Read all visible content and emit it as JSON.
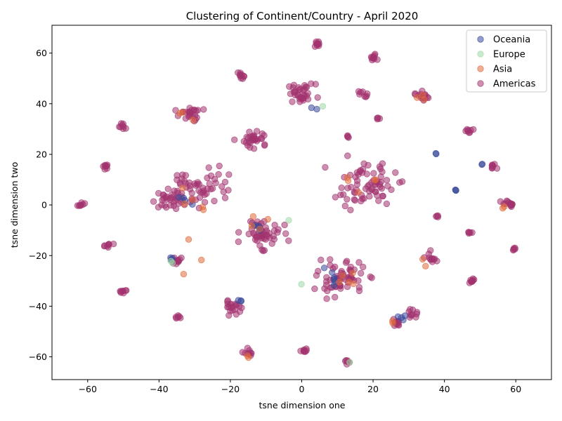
{
  "chart_data": {
    "type": "scatter",
    "title": "Clustering of Continent/Country - April 2020",
    "xlabel": "tsne dimension one",
    "ylabel": "tsne dimension two",
    "xlim": [
      -70,
      70
    ],
    "ylim": [
      -69,
      71
    ],
    "xticks": [
      "−60",
      "−40",
      "−20",
      "0",
      "20",
      "40",
      "60"
    ],
    "yticks": [
      "−60",
      "−40",
      "−20",
      "0",
      "20",
      "40",
      "60"
    ],
    "grid": false,
    "legend_position": "top-right",
    "series": [
      {
        "name": "Oceania",
        "color": "#3a4a9a"
      },
      {
        "name": "Europe",
        "color": "#9fd9a6"
      },
      {
        "name": "Asia",
        "color": "#e06b3c"
      },
      {
        "name": "Americas",
        "color": "#a3336f"
      }
    ],
    "clusters": [
      {
        "x": 4.5,
        "y": 63.5,
        "n": 10,
        "spread": 1.0,
        "series": "Americas"
      },
      {
        "x": 20.0,
        "y": 58.0,
        "n": 10,
        "spread": 0.9,
        "series": "Americas"
      },
      {
        "x": -17.0,
        "y": 51.0,
        "n": 10,
        "spread": 1.3,
        "series": "Americas"
      },
      {
        "x": 0.0,
        "y": 44.0,
        "n": 35,
        "spread": 3.2,
        "series": "Americas"
      },
      {
        "x": 17.0,
        "y": 44.0,
        "n": 8,
        "spread": 1.0,
        "series": "Americas"
      },
      {
        "x": 34.0,
        "y": 42.5,
        "n": 15,
        "spread": 2.0,
        "series": "Americas"
      },
      {
        "x": -31.5,
        "y": 36.0,
        "n": 25,
        "spread": 2.5,
        "series": "Americas"
      },
      {
        "x": -50.0,
        "y": 31.0,
        "n": 8,
        "spread": 1.0,
        "series": "Americas"
      },
      {
        "x": 47.0,
        "y": 29.5,
        "n": 8,
        "spread": 1.0,
        "series": "Americas"
      },
      {
        "x": -13.0,
        "y": 26.0,
        "n": 30,
        "spread": 3.0,
        "series": "Americas"
      },
      {
        "x": 13.0,
        "y": 27.0,
        "n": 4,
        "spread": 0.5,
        "series": "Americas"
      },
      {
        "x": 21.5,
        "y": 34.5,
        "n": 4,
        "spread": 0.5,
        "series": "Americas"
      },
      {
        "x": -29.0,
        "y": 7.0,
        "n": 60,
        "spread": 7.0,
        "series": "Americas"
      },
      {
        "x": -38.0,
        "y": 2.0,
        "n": 25,
        "spread": 3.0,
        "series": "Americas"
      },
      {
        "x": -55.0,
        "y": 15.0,
        "n": 8,
        "spread": 1.0,
        "series": "Americas"
      },
      {
        "x": -62.0,
        "y": 0.0,
        "n": 8,
        "spread": 1.0,
        "series": "Americas"
      },
      {
        "x": 18.0,
        "y": 8.0,
        "n": 70,
        "spread": 7.0,
        "series": "Americas"
      },
      {
        "x": 53.5,
        "y": 15.0,
        "n": 8,
        "spread": 0.8,
        "series": "Americas"
      },
      {
        "x": 58.0,
        "y": 0.5,
        "n": 14,
        "spread": 1.6,
        "series": "Americas"
      },
      {
        "x": -11.0,
        "y": -11.0,
        "n": 50,
        "spread": 4.5,
        "series": "Americas"
      },
      {
        "x": 38.0,
        "y": -4.5,
        "n": 4,
        "spread": 0.4,
        "series": "Americas"
      },
      {
        "x": -54.5,
        "y": -16.0,
        "n": 8,
        "spread": 1.0,
        "series": "Americas"
      },
      {
        "x": -35.5,
        "y": -22.5,
        "n": 12,
        "spread": 1.6,
        "series": "Americas"
      },
      {
        "x": 36.5,
        "y": -21.0,
        "n": 12,
        "spread": 1.7,
        "series": "Americas"
      },
      {
        "x": 59.5,
        "y": -17.5,
        "n": 5,
        "spread": 0.5,
        "series": "Americas"
      },
      {
        "x": 47.0,
        "y": -11.0,
        "n": 5,
        "spread": 0.5,
        "series": "Americas"
      },
      {
        "x": 47.5,
        "y": -30.0,
        "n": 10,
        "spread": 1.0,
        "series": "Americas"
      },
      {
        "x": 11.0,
        "y": -29.0,
        "n": 60,
        "spread": 5.5,
        "series": "Americas"
      },
      {
        "x": -50.0,
        "y": -34.0,
        "n": 8,
        "spread": 1.0,
        "series": "Americas"
      },
      {
        "x": -19.0,
        "y": -40.0,
        "n": 20,
        "spread": 2.0,
        "series": "Americas"
      },
      {
        "x": -34.5,
        "y": -44.5,
        "n": 6,
        "spread": 0.7,
        "series": "Americas"
      },
      {
        "x": 31.0,
        "y": -43.0,
        "n": 10,
        "spread": 1.4,
        "series": "Americas"
      },
      {
        "x": 27.0,
        "y": -46.5,
        "n": 12,
        "spread": 1.5,
        "series": "Americas"
      },
      {
        "x": 0.5,
        "y": -57.5,
        "n": 8,
        "spread": 0.9,
        "series": "Americas"
      },
      {
        "x": -14.5,
        "y": -58.5,
        "n": 10,
        "spread": 1.5,
        "series": "Americas"
      },
      {
        "x": 13.0,
        "y": -62.0,
        "n": 6,
        "spread": 0.6,
        "series": "Americas"
      },
      {
        "x": 43.0,
        "y": 5.8,
        "n": 3,
        "spread": 0.3,
        "series": "Oceania"
      },
      {
        "x": 50.5,
        "y": 16.0,
        "n": 2,
        "spread": 0.3,
        "series": "Oceania"
      },
      {
        "x": 37.5,
        "y": 20.0,
        "n": 2,
        "spread": 0.3,
        "series": "Oceania"
      },
      {
        "x": -37.0,
        "y": -22.0,
        "n": 4,
        "spread": 1.0,
        "series": "Oceania"
      },
      {
        "x": 28.0,
        "y": -44.0,
        "n": 4,
        "spread": 1.0,
        "series": "Oceania"
      },
      {
        "x": -17.5,
        "y": -38.0,
        "n": 3,
        "spread": 0.8,
        "series": "Oceania"
      },
      {
        "x": 9.0,
        "y": -30.0,
        "n": 6,
        "spread": 3.0,
        "series": "Oceania"
      },
      {
        "x": -12.0,
        "y": -9.0,
        "n": 4,
        "spread": 2.0,
        "series": "Oceania"
      },
      {
        "x": -33.0,
        "y": 1.0,
        "n": 4,
        "spread": 3.0,
        "series": "Oceania"
      },
      {
        "x": 3.0,
        "y": 38.0,
        "n": 2,
        "spread": 1.0,
        "series": "Oceania"
      },
      {
        "x": -30.0,
        "y": -22.0,
        "n": 3,
        "spread": 5.0,
        "series": "Asia"
      },
      {
        "x": 34.0,
        "y": 43.0,
        "n": 3,
        "spread": 1.5,
        "series": "Asia"
      },
      {
        "x": -33.0,
        "y": 35.0,
        "n": 3,
        "spread": 2.0,
        "series": "Asia"
      },
      {
        "x": 16.0,
        "y": 5.0,
        "n": 5,
        "spread": 6.0,
        "series": "Asia"
      },
      {
        "x": -34.0,
        "y": 0.0,
        "n": 5,
        "spread": 6.0,
        "series": "Asia"
      },
      {
        "x": 56.0,
        "y": -0.5,
        "n": 2,
        "spread": 1.0,
        "series": "Asia"
      },
      {
        "x": 12.0,
        "y": -30.0,
        "n": 5,
        "spread": 5.0,
        "series": "Asia"
      },
      {
        "x": 34.5,
        "y": -23.0,
        "n": 2,
        "spread": 1.0,
        "series": "Asia"
      },
      {
        "x": -13.0,
        "y": -8.0,
        "n": 4,
        "spread": 4.0,
        "series": "Asia"
      },
      {
        "x": 26.0,
        "y": -47.0,
        "n": 2,
        "spread": 1.0,
        "series": "Asia"
      },
      {
        "x": -15.5,
        "y": -60.0,
        "n": 2,
        "spread": 0.8,
        "series": "Asia"
      },
      {
        "x": -36.0,
        "y": -21.5,
        "n": 2,
        "spread": 1.0,
        "series": "Europe"
      },
      {
        "x": 13.5,
        "y": -62.5,
        "n": 1,
        "spread": 0.3,
        "series": "Europe"
      },
      {
        "x": -4.0,
        "y": -6.0,
        "n": 1,
        "spread": 0.3,
        "series": "Europe"
      },
      {
        "x": 0.0,
        "y": -31.0,
        "n": 1,
        "spread": 0.3,
        "series": "Europe"
      },
      {
        "x": 6.0,
        "y": 39.0,
        "n": 1,
        "spread": 0.3,
        "series": "Europe"
      }
    ]
  }
}
